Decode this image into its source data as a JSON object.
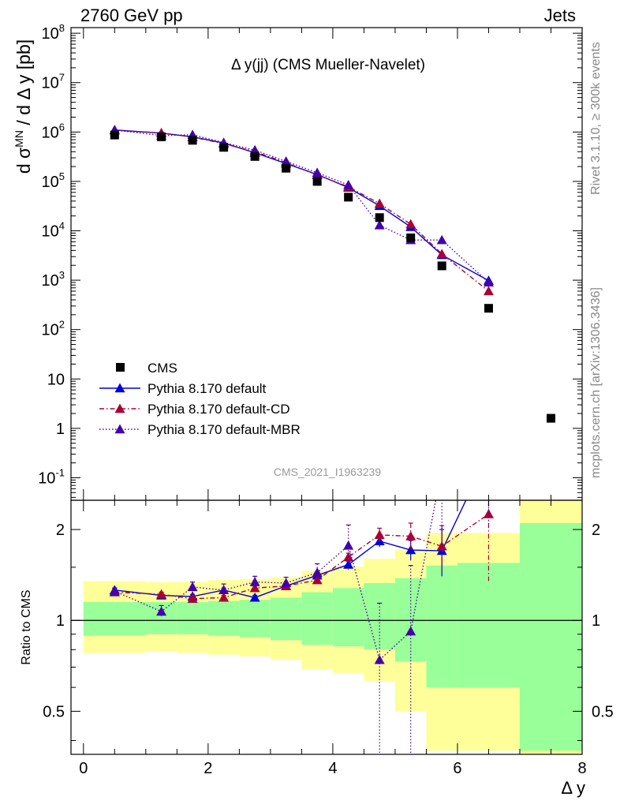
{
  "header": {
    "left": "2760 GeV pp",
    "right": "Jets"
  },
  "side_labels": {
    "rivet": "Rivet 3.1.10, ≥ 300k events",
    "mcplots": "mcplots.cern.ch [arXiv:1306.3436]"
  },
  "plot_title": "Δ y(jj) (CMS Mueller-Navelet)",
  "analysis_id": "CMS_2021_I1963239",
  "main_ylabel": "d σ^MN / d Δ y [pb]",
  "ratio_ylabel": "Ratio to CMS",
  "xlabel": "Δ y",
  "colors": {
    "data": "#000000",
    "default": "#0000dd",
    "cd": "#aa0033",
    "mbr": "#4400aa",
    "band_inner": "#99ff99",
    "band_outer": "#ffff99"
  },
  "chart_data": {
    "type": "scatter",
    "x_range": [
      -0.2,
      8.0
    ],
    "main": {
      "yscale": "log",
      "ylim": [
        0.035,
        130000000.0
      ],
      "yticks": [
        0.1,
        1,
        10,
        100,
        1000,
        10000,
        100000,
        1000000,
        10000000,
        100000000
      ],
      "ytick_labels": [
        "10^-1",
        "1",
        "10",
        "10^2",
        "10^3",
        "10^4",
        "10^5",
        "10^6",
        "10^7",
        "10^8"
      ]
    },
    "ratio": {
      "yscale": "log",
      "ylim": [
        0.36,
        2.5
      ],
      "yticks": [
        0.5,
        1,
        2
      ],
      "ytick_labels": [
        "0.5",
        "1",
        "2"
      ]
    },
    "xticks": [
      0,
      2,
      4,
      6,
      8
    ],
    "xtick_labels": [
      "0",
      "2",
      "4",
      "6",
      "8"
    ],
    "legend": [
      {
        "key": "data",
        "label": "CMS"
      },
      {
        "key": "default",
        "label": "Pythia 8.170 default"
      },
      {
        "key": "cd",
        "label": "Pythia 8.170 default-CD"
      },
      {
        "key": "mbr",
        "label": "Pythia 8.170 default-MBR"
      }
    ],
    "data": {
      "name": "CMS",
      "x": [
        0.5,
        1.25,
        1.75,
        2.25,
        2.75,
        3.25,
        3.75,
        4.25,
        4.75,
        5.25,
        5.75,
        6.5,
        7.5
      ],
      "xerr": [
        [
          0,
          1.0
        ],
        [
          1.0,
          1.5
        ],
        [
          1.5,
          2.0
        ],
        [
          2.0,
          2.5
        ],
        [
          2.5,
          3.0
        ],
        [
          3.0,
          3.5
        ],
        [
          3.5,
          4.0
        ],
        [
          4.0,
          4.5
        ],
        [
          4.5,
          5.0
        ],
        [
          5.0,
          5.5
        ],
        [
          5.5,
          6.0
        ],
        [
          6.0,
          7.0
        ],
        [
          7.0,
          8.0
        ]
      ],
      "y": [
        870000,
        800000,
        680000,
        490000,
        320000,
        185000,
        100000,
        48000,
        18500,
        7200,
        1950,
        270,
        1.6
      ],
      "band_outer": [
        [
          0.78,
          1.35
        ],
        [
          0.79,
          1.34
        ],
        [
          0.78,
          1.34
        ],
        [
          0.77,
          1.36
        ],
        [
          0.76,
          1.37
        ],
        [
          0.74,
          1.39
        ],
        [
          0.69,
          1.46
        ],
        [
          0.67,
          1.51
        ],
        [
          0.63,
          1.6
        ],
        [
          0.5,
          1.72
        ],
        [
          0.37,
          1.95
        ],
        [
          0.37,
          1.95
        ],
        [
          0.36,
          2.5
        ]
      ],
      "band_inner": [
        [
          0.89,
          1.15
        ],
        [
          0.9,
          1.15
        ],
        [
          0.9,
          1.15
        ],
        [
          0.89,
          1.16
        ],
        [
          0.88,
          1.17
        ],
        [
          0.86,
          1.19
        ],
        [
          0.83,
          1.24
        ],
        [
          0.82,
          1.28
        ],
        [
          0.8,
          1.33
        ],
        [
          0.73,
          1.38
        ],
        [
          0.6,
          1.52
        ],
        [
          0.6,
          1.55
        ],
        [
          0.37,
          2.1
        ]
      ]
    },
    "series": [
      {
        "name": "Pythia 8.170 default",
        "key": "default",
        "style": "solid",
        "x": [
          0.5,
          1.25,
          1.75,
          2.25,
          2.75,
          3.25,
          3.75,
          4.25,
          4.75,
          5.25,
          5.75,
          6.5
        ],
        "y": [
          1100000,
          950000,
          800000,
          600000,
          380000,
          230000,
          138000,
          75000,
          32000,
          12000,
          3250,
          980
        ],
        "ratio": [
          1.26,
          1.21,
          1.2,
          1.26,
          1.19,
          1.3,
          1.41,
          1.53,
          1.83,
          1.71,
          1.7,
          3.6
        ],
        "ratio_err": [
          0.02,
          0.02,
          0.02,
          0.02,
          0.02,
          0.02,
          0.03,
          0.04,
          0.08,
          0.13,
          0.3,
          1.0
        ]
      },
      {
        "name": "Pythia 8.170 default-CD",
        "key": "cd",
        "style": "dashdot",
        "x": [
          0.5,
          1.25,
          1.75,
          2.25,
          2.75,
          3.25,
          3.75,
          4.25,
          4.75,
          5.25,
          5.75,
          6.5
        ],
        "y": [
          1080000,
          960000,
          790000,
          580000,
          400000,
          240000,
          135000,
          78000,
          35500,
          13600,
          3400,
          600
        ],
        "ratio": [
          1.24,
          1.22,
          1.18,
          1.19,
          1.28,
          1.3,
          1.36,
          1.62,
          1.92,
          1.9,
          1.76,
          2.25
        ],
        "ratio_err": [
          0.02,
          0.02,
          0.02,
          0.02,
          0.03,
          0.03,
          0.04,
          0.05,
          0.1,
          0.2,
          0.3,
          0.9
        ]
      },
      {
        "name": "Pythia 8.170 default-MBR",
        "key": "mbr",
        "style": "dotted",
        "x": [
          0.5,
          1.25,
          1.75,
          2.25,
          2.75,
          3.25,
          3.75,
          4.25,
          4.75,
          5.25,
          5.75,
          6.5
        ],
        "y": [
          1100000,
          850000,
          880000,
          610000,
          430000,
          255000,
          150000,
          85000,
          13000,
          6500,
          6500,
          900
        ],
        "ratio": [
          1.25,
          1.07,
          1.29,
          1.26,
          1.34,
          1.33,
          1.44,
          1.77,
          0.74,
          0.92,
          3.2,
          3.5
        ],
        "ratio_err": [
          0.03,
          0.05,
          0.05,
          0.06,
          0.06,
          0.06,
          0.1,
          0.3,
          0.4,
          0.6,
          1.5,
          1.5
        ]
      }
    ]
  }
}
